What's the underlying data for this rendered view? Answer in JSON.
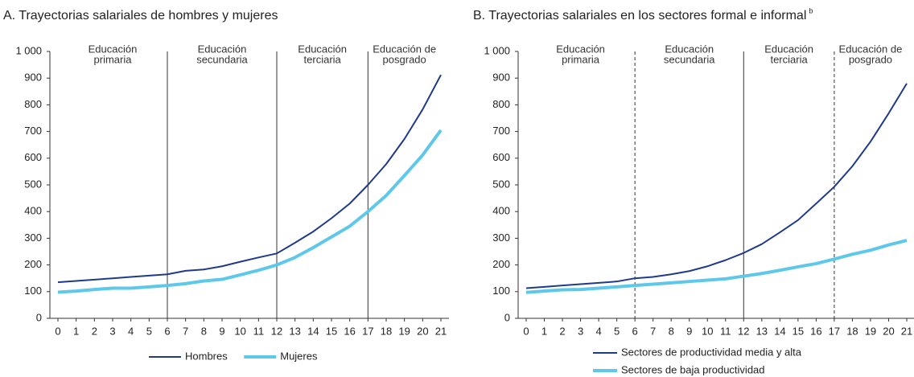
{
  "chart_data": [
    {
      "type": "line",
      "title": "A. Trayectorias salariales de hombres y mujeres",
      "x": [
        0,
        1,
        2,
        3,
        4,
        5,
        6,
        7,
        8,
        9,
        10,
        11,
        12,
        13,
        14,
        15,
        16,
        17,
        18,
        19,
        20,
        21
      ],
      "xlim": [
        0,
        21
      ],
      "xticks": [
        0,
        1,
        2,
        3,
        4,
        5,
        6,
        7,
        8,
        9,
        10,
        11,
        12,
        13,
        14,
        15,
        16,
        17,
        18,
        19,
        20,
        21
      ],
      "ylim": [
        0,
        1000
      ],
      "yticks": [
        0,
        100,
        200,
        300,
        400,
        500,
        600,
        700,
        800,
        900,
        {
          "value": 1000,
          "label": "1 000"
        }
      ],
      "dividers": [
        {
          "x": 6,
          "style": "solid"
        },
        {
          "x": 12,
          "style": "solid"
        },
        {
          "x": 17,
          "style": "solid"
        }
      ],
      "regions": [
        [
          "Educación",
          "primaria"
        ],
        [
          "Educación",
          "secundaria"
        ],
        [
          "Educación",
          "terciaria"
        ],
        [
          "Educación de",
          "posgrado"
        ]
      ],
      "legend": "bottom-row",
      "series": [
        {
          "name": "Hombres",
          "color": "#1f3a8a",
          "values": [
            135,
            140,
            145,
            150,
            155,
            160,
            165,
            178,
            183,
            195,
            212,
            228,
            243,
            283,
            325,
            375,
            430,
            500,
            578,
            672,
            783,
            912
          ]
        },
        {
          "name": "Mujeres",
          "color": "#5ec8ea",
          "values": [
            98,
            102,
            108,
            113,
            113,
            118,
            123,
            130,
            140,
            146,
            163,
            180,
            200,
            228,
            265,
            305,
            345,
            400,
            460,
            535,
            612,
            705
          ]
        }
      ]
    },
    {
      "type": "line",
      "title": "B. Trayectorias salariales en los sectores formal e informal",
      "title_note": "b",
      "x": [
        0,
        1,
        2,
        3,
        4,
        5,
        6,
        7,
        8,
        9,
        10,
        11,
        12,
        13,
        14,
        15,
        16,
        17,
        18,
        19,
        20,
        21
      ],
      "xlim": [
        0,
        21
      ],
      "xticks": [
        0,
        1,
        2,
        3,
        4,
        5,
        6,
        7,
        8,
        9,
        10,
        11,
        12,
        13,
        14,
        15,
        16,
        17,
        18,
        19,
        20,
        21
      ],
      "ylim": [
        0,
        1000
      ],
      "yticks": [
        0,
        100,
        200,
        300,
        400,
        500,
        600,
        700,
        800,
        900,
        {
          "value": 1000,
          "label": "1 000"
        }
      ],
      "dividers": [
        {
          "x": 6,
          "style": "dashed"
        },
        {
          "x": 12,
          "style": "solid"
        },
        {
          "x": 17,
          "style": "dashed"
        }
      ],
      "regions": [
        [
          "Educación",
          "primaria"
        ],
        [
          "Educación",
          "secundaria"
        ],
        [
          "Educación",
          "terciaria"
        ],
        [
          "Educación de",
          "posgrado"
        ]
      ],
      "legend": "bottom-column",
      "series": [
        {
          "name": "Sectores de productividad media y alta",
          "color": "#1f3a8a",
          "values": [
            113,
            118,
            123,
            128,
            133,
            138,
            150,
            155,
            165,
            177,
            195,
            218,
            245,
            278,
            322,
            368,
            430,
            493,
            570,
            662,
            768,
            880
          ]
        },
        {
          "name": "Sectores de baja productividad",
          "color": "#5ec8ea",
          "values": [
            97,
            102,
            107,
            108,
            113,
            118,
            123,
            128,
            133,
            138,
            143,
            148,
            158,
            168,
            180,
            193,
            205,
            222,
            240,
            255,
            275,
            292
          ]
        }
      ]
    }
  ]
}
